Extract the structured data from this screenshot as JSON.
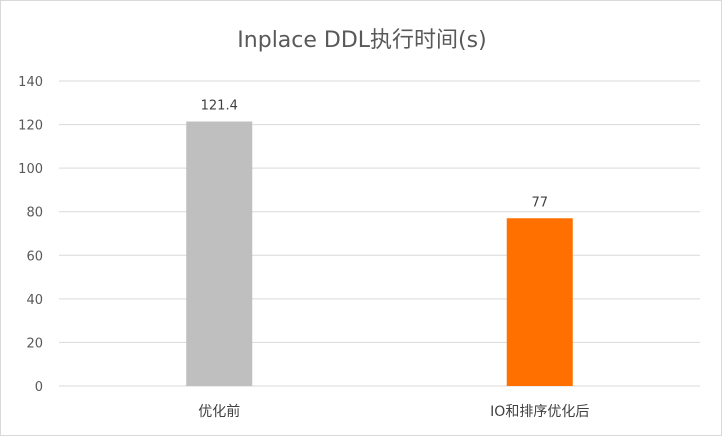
{
  "chart_data": {
    "type": "bar",
    "title": "Inplace DDL执行时间(s)",
    "xlabel": "",
    "ylabel": "",
    "categories": [
      "优化前",
      "IO和排序优化后"
    ],
    "values": [
      121.4,
      77
    ],
    "data_labels": [
      "121.4",
      "77"
    ],
    "bar_colors": [
      "#bfbfbf",
      "#ff7000"
    ],
    "ylim": [
      0,
      140
    ],
    "yticks": [
      0,
      20,
      40,
      60,
      80,
      100,
      120,
      140
    ],
    "grid": true,
    "legend": "none"
  }
}
